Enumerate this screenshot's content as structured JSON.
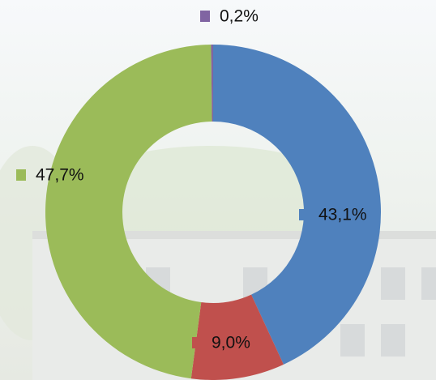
{
  "chart_data": {
    "type": "donut",
    "series": [
      {
        "values": [
          43.1,
          9.0,
          47.7,
          0.2
        ],
        "value_labels": [
          "43,1%",
          "9,0%",
          "47,7%",
          "0,2%"
        ],
        "colors": [
          "#4f81bd",
          "#c0504d",
          "#9bbb59",
          "#8064a2"
        ]
      }
    ]
  }
}
